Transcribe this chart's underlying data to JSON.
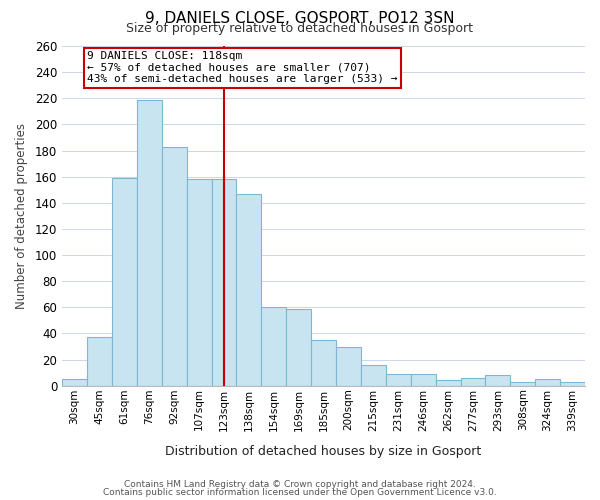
{
  "title": "9, DANIELS CLOSE, GOSPORT, PO12 3SN",
  "subtitle": "Size of property relative to detached houses in Gosport",
  "xlabel": "Distribution of detached houses by size in Gosport",
  "ylabel": "Number of detached properties",
  "bar_labels": [
    "30sqm",
    "45sqm",
    "61sqm",
    "76sqm",
    "92sqm",
    "107sqm",
    "123sqm",
    "138sqm",
    "154sqm",
    "169sqm",
    "185sqm",
    "200sqm",
    "215sqm",
    "231sqm",
    "246sqm",
    "262sqm",
    "277sqm",
    "293sqm",
    "308sqm",
    "324sqm",
    "339sqm"
  ],
  "bar_heights": [
    5,
    37,
    159,
    219,
    183,
    158,
    158,
    147,
    60,
    59,
    35,
    30,
    16,
    9,
    9,
    4,
    6,
    8,
    3,
    5,
    3
  ],
  "bar_color": "#c8e4f0",
  "bar_edge_color": "#7bb8d4",
  "property_label": "9 DANIELS CLOSE: 118sqm",
  "line_color": "#cc0000",
  "annotation_line1": "← 57% of detached houses are smaller (707)",
  "annotation_line2": "43% of semi-detached houses are larger (533) →",
  "ylim": [
    0,
    260
  ],
  "yticks": [
    0,
    20,
    40,
    60,
    80,
    100,
    120,
    140,
    160,
    180,
    200,
    220,
    240,
    260
  ],
  "vline_x_index": 6,
  "footnote1": "Contains HM Land Registry data © Crown copyright and database right 2024.",
  "footnote2": "Contains public sector information licensed under the Open Government Licence v3.0.",
  "background_color": "#ffffff",
  "grid_color": "#ccd8e8"
}
